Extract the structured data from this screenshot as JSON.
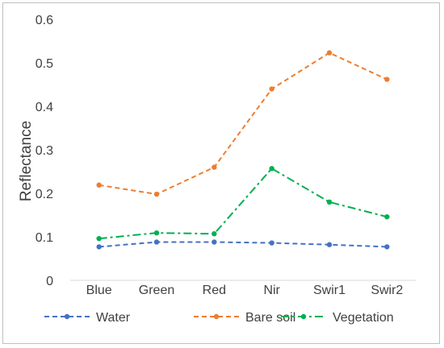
{
  "chart_data": {
    "type": "line",
    "title": "",
    "xlabel": "",
    "ylabel": "Reflectance",
    "categories": [
      "Blue",
      "Green",
      "Red",
      "Nir",
      "Swir1",
      "Swir2"
    ],
    "ylim": [
      0,
      0.6
    ],
    "yticks": [
      "0",
      "0.1",
      "0.2",
      "0.3",
      "0.4",
      "0.5",
      "0.6"
    ],
    "grid": false,
    "legend_position": "bottom",
    "series": [
      {
        "name": "Water",
        "values": [
          0.077,
          0.088,
          0.088,
          0.086,
          0.082,
          0.077
        ],
        "color": "#4472c4",
        "dash": "dashed"
      },
      {
        "name": "Bare soil",
        "values": [
          0.219,
          0.198,
          0.26,
          0.44,
          0.523,
          0.462
        ],
        "color": "#ed7d31",
        "dash": "dashed"
      },
      {
        "name": "Vegetation",
        "values": [
          0.096,
          0.109,
          0.107,
          0.257,
          0.18,
          0.146
        ],
        "color": "#00b050",
        "dash": "dash-dot"
      }
    ]
  }
}
